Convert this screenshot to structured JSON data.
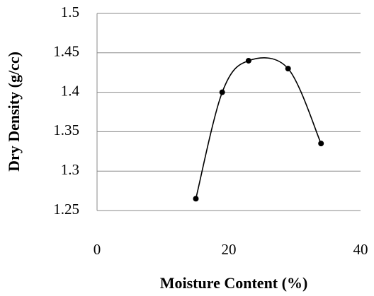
{
  "chart_data": {
    "type": "scatter",
    "x": [
      15,
      19,
      23,
      29,
      34
    ],
    "values": [
      1.265,
      1.4,
      1.44,
      1.43,
      1.335
    ],
    "xlabel": "Moisture Content (%)",
    "ylabel": "Dry Density (g/cc)",
    "xlim": [
      0,
      40
    ],
    "ylim": [
      1.25,
      1.5
    ],
    "xticks": [
      0,
      20,
      40
    ],
    "yticks": [
      1.25,
      1.3,
      1.35,
      1.4,
      1.45,
      1.5
    ],
    "grid": true,
    "smooth": true,
    "color": "#000000"
  }
}
